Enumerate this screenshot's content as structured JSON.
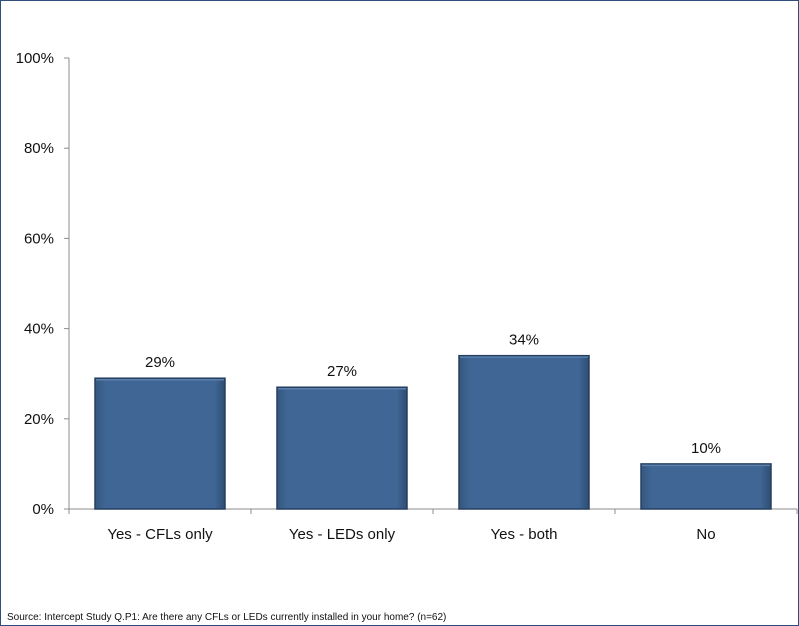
{
  "chart_data": {
    "type": "bar",
    "categories": [
      "Yes - CFLs only",
      "Yes - LEDs only",
      "Yes - both",
      "No"
    ],
    "values": [
      29,
      27,
      34,
      10
    ],
    "data_labels": [
      "29%",
      "27%",
      "34%",
      "10%"
    ],
    "ylim": [
      0,
      100
    ],
    "yticks": [
      0,
      20,
      40,
      60,
      80,
      100
    ],
    "ytick_labels": [
      "0%",
      "20%",
      "40%",
      "60%",
      "80%",
      "100%"
    ],
    "grid": false,
    "legend": "none",
    "bar_color": "#3f6694"
  },
  "source_note": "Source: Intercept Study Q.P1: Are there any CFLs or LEDs currently installed in your home? (n=62)"
}
